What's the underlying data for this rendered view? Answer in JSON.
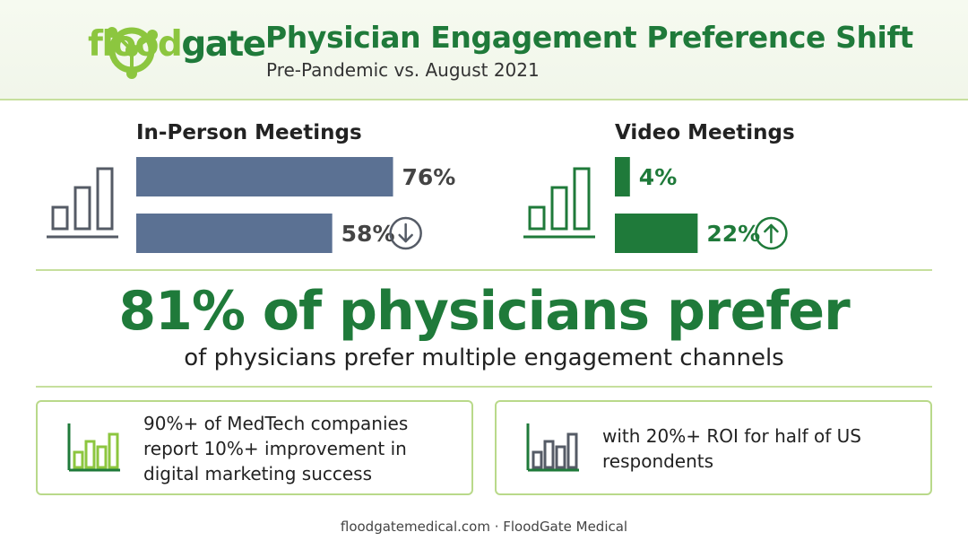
{
  "header": {
    "logo": {
      "text_part1": "flood",
      "text_part2": "gate",
      "icon": "network-node-icon"
    },
    "title": "Physician Engagement Preference Shift",
    "subtitle": "Pre-Pandemic vs. August 2021"
  },
  "colors": {
    "brand_green": "#1f7a3a",
    "light_green": "#8cc63f",
    "slate_bar": "#5b7193",
    "rule": "#c6df9d"
  },
  "chart_data": [
    {
      "type": "bar",
      "orientation": "horizontal",
      "title": "In-Person Meetings",
      "categories": [
        "",
        ""
      ],
      "values": [
        76,
        58
      ],
      "labels": [
        "76%",
        "58%"
      ],
      "xlim": [
        0,
        100
      ],
      "trend_icon": "arrow-down-circle-icon",
      "bar_color": "#5b7193",
      "label_color": "#444444",
      "grid": false
    },
    {
      "type": "bar",
      "orientation": "horizontal",
      "title": "Video Meetings",
      "categories": [
        "",
        ""
      ],
      "values": [
        4,
        22
      ],
      "labels": [
        "4%",
        "22%"
      ],
      "xlim": [
        0,
        100
      ],
      "trend_icon": "arrow-up-circle-icon",
      "bar_color": "#1f7a3a",
      "label_color": "#1f7a3a",
      "grid": false
    }
  ],
  "headline": {
    "stat": "81% of physicians prefer",
    "description": "of physicians prefer multiple engagement channels"
  },
  "cards": [
    {
      "icon": "bar-chart-icon",
      "text": "90%+ of MedTech companies report 10%+ improvement in digital marketing success"
    },
    {
      "icon": "bar-chart-icon",
      "text": "with 20%+ ROI for half of US respondents"
    }
  ],
  "footer": {
    "text": "floodgatemedical.com · FloodGate Medical"
  }
}
